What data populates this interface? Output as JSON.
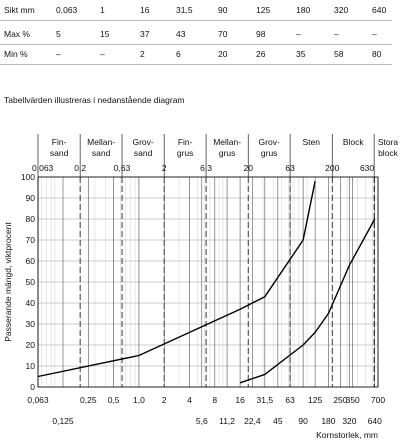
{
  "table": {
    "headers": [
      "Sikt mm",
      "0,063",
      "1",
      "16",
      "31,5",
      "90",
      "125",
      "180",
      "320",
      "640"
    ],
    "rows": [
      {
        "label": "Max %",
        "values": [
          "5",
          "15",
          "37",
          "43",
          "70",
          "98",
          "–",
          "–",
          "–"
        ]
      },
      {
        "label": "Min %",
        "values": [
          "–",
          "–",
          "2",
          "6",
          "20",
          "26",
          "35",
          "58",
          "80"
        ]
      }
    ]
  },
  "caption": "Tabellvärden illustreras i nedanstående diagram",
  "chart_data": {
    "type": "line",
    "xscale": "log",
    "xlim": [
      0.063,
      700
    ],
    "ylim": [
      0,
      100
    ],
    "grid": true,
    "ylabel": "Passerande mängd, viktprocent",
    "xlabel": "Kornstorlek, mm",
    "yticks": [
      0,
      10,
      20,
      30,
      40,
      50,
      60,
      70,
      80,
      90,
      100
    ],
    "xticks_bottom_upper": [
      "0,063",
      "0,25",
      "0,5",
      "1,0",
      "2",
      "4",
      "8",
      "16",
      "31,5",
      "63",
      "125",
      "250",
      "350",
      "700"
    ],
    "xticks_bottom_lower": [
      "0,125",
      "5,6",
      "11,2",
      "22,4",
      "45",
      "90",
      "180",
      "320",
      "640"
    ],
    "xticks_top": [
      "0,063",
      "0,2",
      "0,63",
      "2",
      "6,3",
      "20",
      "63",
      "200",
      "630"
    ],
    "fractions": [
      "Fin-\nsand",
      "Mellan-\nsand",
      "Grov-\nsand",
      "Fin-\ngrus",
      "Mellan-\ngrus",
      "Grov-\ngrus",
      "Sten",
      "Block",
      "Stora\nblock"
    ],
    "series": [
      {
        "values": [
          [
            0.063,
            5
          ],
          [
            1,
            15
          ],
          [
            16,
            37
          ],
          [
            31.5,
            43
          ],
          [
            90,
            70
          ],
          [
            125,
            98
          ]
        ]
      },
      {
        "values": [
          [
            16,
            2
          ],
          [
            31.5,
            6
          ],
          [
            90,
            20
          ],
          [
            125,
            26
          ],
          [
            180,
            35
          ],
          [
            320,
            58
          ],
          [
            640,
            80
          ]
        ]
      }
    ]
  }
}
